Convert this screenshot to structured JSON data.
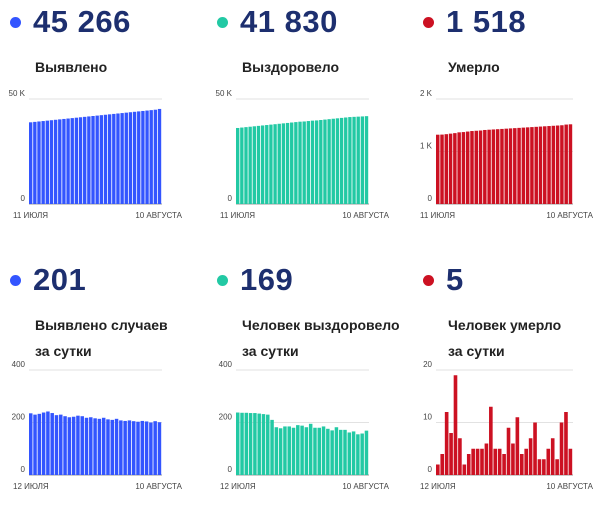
{
  "colors": {
    "blue": "#3355ff",
    "green": "#22c9a4",
    "red": "#cc1122",
    "number": "#1d2f6f"
  },
  "panels": [
    {
      "id": "detected_total",
      "value": "45 266",
      "label_line1": "Выявлено",
      "label_line2": "",
      "color": "#3355ff"
    },
    {
      "id": "recovered_total",
      "value": "41 830",
      "label_line1": "Выздоровело",
      "label_line2": "",
      "color": "#22c9a4"
    },
    {
      "id": "died_total",
      "value": "1 518",
      "label_line1": "Умерло",
      "label_line2": "",
      "color": "#cc1122"
    },
    {
      "id": "detected_daily",
      "value": "201",
      "label_line1": "Выявлено случаев",
      "label_line2": "за сутки",
      "color": "#3355ff"
    },
    {
      "id": "recovered_daily",
      "value": "169",
      "label_line1": "Человек выздоровело",
      "label_line2": "за сутки",
      "color": "#22c9a4"
    },
    {
      "id": "died_daily",
      "value": "5",
      "label_line1": "Человек умерло",
      "label_line2": "за сутки",
      "color": "#cc1122"
    }
  ],
  "chart_data": [
    {
      "type": "bar",
      "panel": 0,
      "color": "#3355ff",
      "ylim": [
        0,
        50000
      ],
      "yticks": [
        0,
        50000
      ],
      "ytick_labels": [
        "0",
        "50 K"
      ],
      "x_start_label": "11 ИЮЛЯ",
      "x_end_label": "10 АВГУСТА",
      "values": [
        38900,
        39100,
        39300,
        39500,
        39700,
        39900,
        40100,
        40300,
        40500,
        40700,
        40900,
        41100,
        41300,
        41500,
        41700,
        41900,
        42100,
        42300,
        42500,
        42700,
        42900,
        43100,
        43300,
        43500,
        43700,
        43900,
        44100,
        44300,
        44500,
        44700,
        44900,
        45266
      ]
    },
    {
      "type": "bar",
      "panel": 1,
      "color": "#22c9a4",
      "ylim": [
        0,
        50000
      ],
      "yticks": [
        0,
        50000
      ],
      "ytick_labels": [
        "0",
        "50 K"
      ],
      "x_start_label": "11 ИЮЛЯ",
      "x_end_label": "10 АВГУСТА",
      "values": [
        36200,
        36400,
        36600,
        36800,
        37000,
        37200,
        37400,
        37600,
        37800,
        38000,
        38200,
        38400,
        38600,
        38800,
        39000,
        39200,
        39300,
        39500,
        39700,
        39800,
        40000,
        40200,
        40400,
        40600,
        40800,
        41000,
        41200,
        41400,
        41500,
        41600,
        41700,
        41830
      ]
    },
    {
      "type": "bar",
      "panel": 2,
      "color": "#cc1122",
      "ylim": [
        0,
        2000
      ],
      "yticks": [
        0,
        1000,
        2000
      ],
      "ytick_labels": [
        "0",
        "1 K",
        "2 K"
      ],
      "x_start_label": "11 ИЮЛЯ",
      "x_end_label": "10 АВГУСТА",
      "values": [
        1320,
        1322,
        1330,
        1340,
        1350,
        1365,
        1370,
        1380,
        1390,
        1395,
        1400,
        1410,
        1415,
        1420,
        1425,
        1430,
        1435,
        1440,
        1445,
        1450,
        1455,
        1460,
        1465,
        1470,
        1475,
        1480,
        1485,
        1490,
        1495,
        1500,
        1513,
        1518
      ]
    },
    {
      "type": "bar",
      "panel": 3,
      "color": "#3355ff",
      "ylim": [
        0,
        400
      ],
      "yticks": [
        0,
        200,
        400
      ],
      "ytick_labels": [
        "0",
        "200",
        "400"
      ],
      "x_start_label": "12 ИЮЛЯ",
      "x_end_label": "10 АВГУСТА",
      "values": [
        235,
        230,
        233,
        238,
        242,
        236,
        228,
        230,
        224,
        220,
        222,
        226,
        224,
        218,
        220,
        216,
        214,
        218,
        212,
        210,
        214,
        208,
        206,
        208,
        205,
        203,
        206,
        204,
        200,
        205,
        201
      ]
    },
    {
      "type": "bar",
      "panel": 4,
      "color": "#22c9a4",
      "ylim": [
        0,
        400
      ],
      "yticks": [
        0,
        200,
        400
      ],
      "ytick_labels": [
        "0",
        "200",
        "400"
      ],
      "x_start_label": "12 ИЮЛЯ",
      "x_end_label": "10 АВГУСТА",
      "values": [
        238,
        237,
        237,
        236,
        236,
        234,
        232,
        230,
        210,
        182,
        178,
        185,
        185,
        180,
        190,
        188,
        182,
        195,
        180,
        180,
        185,
        176,
        170,
        182,
        172,
        172,
        162,
        166,
        155,
        158,
        169
      ]
    },
    {
      "type": "bar",
      "panel": 5,
      "color": "#cc1122",
      "ylim": [
        0,
        20
      ],
      "yticks": [
        0,
        10,
        20
      ],
      "ytick_labels": [
        "0",
        "10",
        "20"
      ],
      "x_start_label": "12 ИЮЛЯ",
      "x_end_label": "10 АВГУСТА",
      "values": [
        2,
        4,
        12,
        8,
        19,
        7,
        2,
        4,
        5,
        5,
        5,
        6,
        13,
        5,
        5,
        4,
        9,
        6,
        11,
        4,
        5,
        7,
        10,
        3,
        3,
        5,
        7,
        3,
        10,
        12,
        5
      ]
    }
  ]
}
